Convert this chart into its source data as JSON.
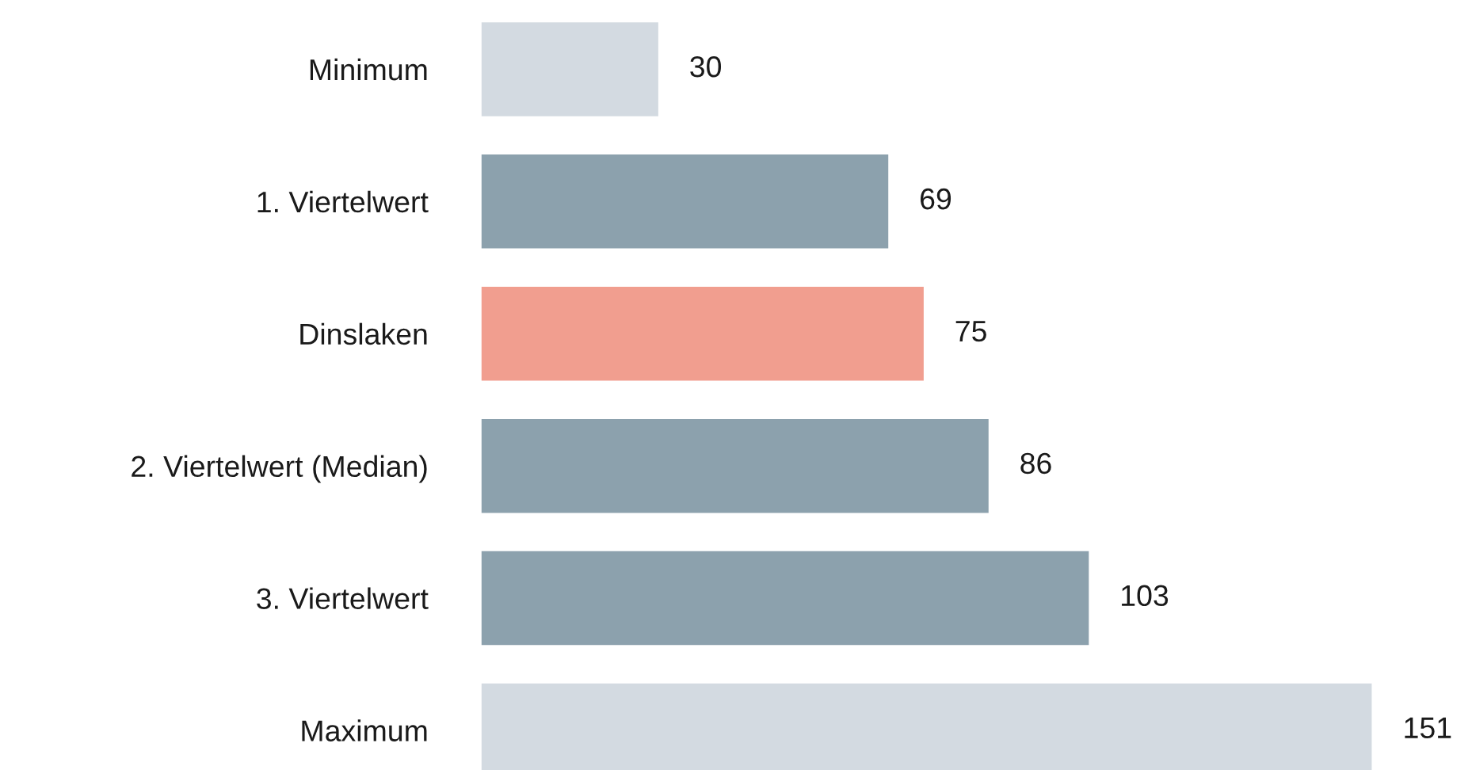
{
  "chart_data": {
    "type": "bar",
    "orientation": "horizontal",
    "categories": [
      "Minimum",
      "1. Viertelwert",
      "Dinslaken",
      "2. Viertelwert (Median)",
      "3. Viertelwert",
      "Maximum"
    ],
    "values": [
      30,
      69,
      75,
      86,
      103,
      151
    ],
    "colors": [
      "#d3dae1",
      "#8ca1ad",
      "#f19e8f",
      "#8ca1ad",
      "#8ca1ad",
      "#d3dae1"
    ],
    "data_labels": true
  }
}
